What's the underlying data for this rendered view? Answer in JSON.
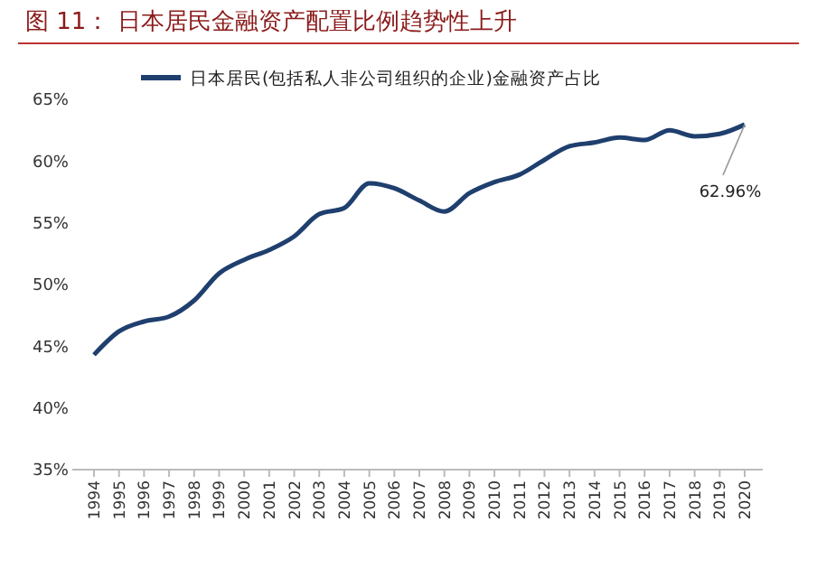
{
  "chart_data": {
    "type": "line",
    "title": "图 11： 日本居民金融资产配置比例趋势性上升",
    "categories": [
      "1994",
      "1995",
      "1996",
      "1997",
      "1998",
      "1999",
      "2000",
      "2001",
      "2002",
      "2003",
      "2004",
      "2005",
      "2006",
      "2007",
      "2008",
      "2009",
      "2010",
      "2011",
      "2012",
      "2013",
      "2014",
      "2015",
      "2016",
      "2017",
      "2018",
      "2019",
      "2020"
    ],
    "series": [
      {
        "name": "日本居民(包括私人非公司组织的企业)金融资产占比",
        "color": "#1f3f6e",
        "values": [
          44.3,
          46.2,
          47.0,
          47.4,
          48.7,
          50.9,
          52.0,
          52.8,
          53.9,
          55.7,
          56.2,
          58.2,
          57.8,
          56.8,
          55.9,
          57.4,
          58.3,
          58.9,
          60.1,
          61.2,
          61.5,
          61.9,
          61.7,
          62.5,
          62.0,
          62.2,
          62.96
        ]
      }
    ],
    "ylim": [
      35,
      65
    ],
    "yticks": [
      {
        "value": 35,
        "label": "35%"
      },
      {
        "value": 40,
        "label": "40%"
      },
      {
        "value": 45,
        "label": "45%"
      },
      {
        "value": 50,
        "label": "50%"
      },
      {
        "value": 55,
        "label": "55%"
      },
      {
        "value": 60,
        "label": "60%"
      },
      {
        "value": 65,
        "label": "65%"
      }
    ],
    "annotations": [
      {
        "text": "62.96%",
        "x": "2020",
        "y": 62.96
      }
    ],
    "legend": "top",
    "grid": false
  }
}
